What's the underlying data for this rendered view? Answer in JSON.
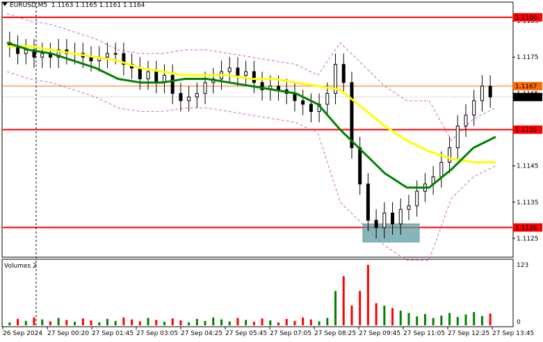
{
  "header": {
    "symbol": "EURUSD,M5",
    "ohlc": "1.1163 1.1165 1.1161 1.1164"
  },
  "volumes_panel": {
    "title": "Volumes 2",
    "scale_max": "123",
    "scale_zero": "0"
  },
  "price_axis": {
    "ticks": [
      "1.1185",
      "1.1175",
      "1.1165",
      "1.1155",
      "1.1145",
      "1.1135",
      "1.1125"
    ]
  },
  "price_labels": [
    {
      "text": "1.1186",
      "color": "#ff0000"
    },
    {
      "text": "1.1167",
      "color": "#ff6b00"
    },
    {
      "text": "1.1164",
      "color": "#000000"
    },
    {
      "text": "1.1155",
      "color": "#ff0000"
    },
    {
      "text": "1.1128",
      "color": "#ff0000"
    }
  ],
  "time_axis": {
    "labels": [
      "26 Sep 2024",
      "27 Sep 00:20",
      "27 Sep 01:45",
      "27 Sep 03:05",
      "27 Sep 04:25",
      "27 Sep 05:45",
      "27 Sep 07:05",
      "27 Sep 08:25",
      "27 Sep 09:45",
      "27 Sep 11:05",
      "27 Sep 12:25",
      "27 Sep 13:45"
    ]
  },
  "levels": {
    "resistance_high": 1.1186,
    "pivot_orange": 1.1167,
    "resistance_mid": 1.1155,
    "support_low": 1.1128
  },
  "colors": {
    "level_line": "#ff0000",
    "orange_line": "#ff6b00",
    "ma_fast": "#ffff00",
    "ma_slow": "#008000",
    "bands": "#cc66cc",
    "volume_up": "#008000",
    "volume_down": "#ff0000",
    "highlight_box": "#5f9ea0"
  },
  "chart_data": {
    "type": "candlestick",
    "title": "EURUSD,M5",
    "ylim": [
      1.112,
      1.119
    ],
    "y_ticks": [
      1.1185,
      1.1175,
      1.1165,
      1.1155,
      1.1145,
      1.1135,
      1.1125
    ],
    "x_labels": [
      "26 Sep 2024",
      "27 Sep 00:20",
      "27 Sep 01:45",
      "27 Sep 03:05",
      "27 Sep 04:25",
      "27 Sep 05:45",
      "27 Sep 07:05",
      "27 Sep 08:25",
      "27 Sep 09:45",
      "27 Sep 11:05",
      "27 Sep 12:25",
      "27 Sep 13:45"
    ],
    "close_path": [
      1.1178,
      1.1176,
      1.1177,
      1.1175,
      1.1176,
      1.1175,
      1.1177,
      1.1176,
      1.1176,
      1.1175,
      1.1174,
      1.1175,
      1.1176,
      1.1176,
      1.1173,
      1.1172,
      1.1169,
      1.1171,
      1.1168,
      1.117,
      1.1165,
      1.1163,
      1.1164,
      1.1165,
      1.1168,
      1.1169,
      1.1171,
      1.1172,
      1.117,
      1.1171,
      1.1168,
      1.1166,
      1.1167,
      1.1166,
      1.1165,
      1.1163,
      1.1162,
      1.116,
      1.1162,
      1.1165,
      1.1173,
      1.1168,
      1.115,
      1.114,
      1.113,
      1.1128,
      1.1132,
      1.1129,
      1.1133,
      1.1134,
      1.1138,
      1.114,
      1.1142,
      1.1146,
      1.115,
      1.1156,
      1.1159,
      1.1163,
      1.1167,
      1.1164
    ],
    "ma_fast": [
      1.1178,
      1.1178,
      1.1177,
      1.1176,
      1.1175,
      1.1174,
      1.1172,
      1.1171,
      1.117,
      1.117,
      1.117,
      1.1169,
      1.1169,
      1.1168,
      1.1167,
      1.1166,
      1.1161,
      1.1156,
      1.1152,
      1.1149,
      1.1147,
      1.1146,
      1.1146
    ],
    "ma_slow": [
      1.1179,
      1.1177,
      1.1176,
      1.1174,
      1.1172,
      1.1169,
      1.1168,
      1.1168,
      1.1169,
      1.1169,
      1.1168,
      1.1167,
      1.1166,
      1.1165,
      1.1162,
      1.1155,
      1.1149,
      1.1143,
      1.1139,
      1.1139,
      1.1144,
      1.115,
      1.1153
    ],
    "volume_max": 123
  }
}
